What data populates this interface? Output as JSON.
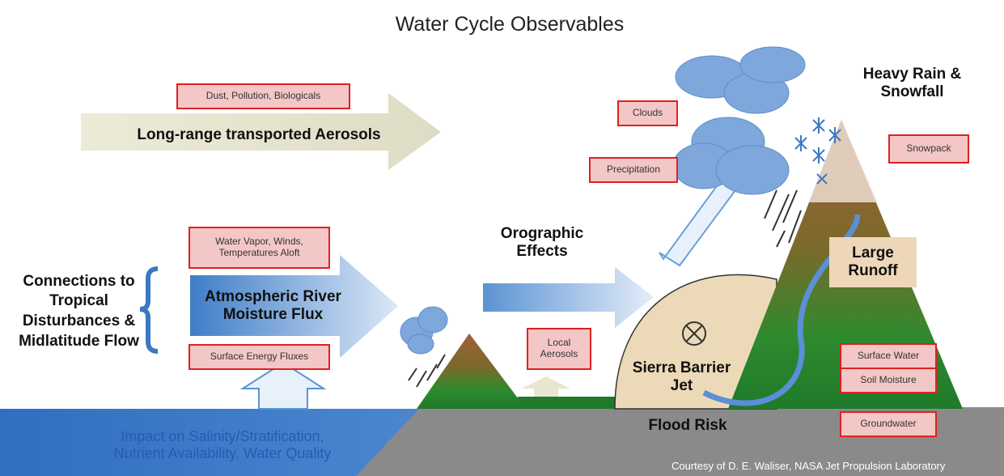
{
  "title": "Water Cycle Observables",
  "observables": [
    "Dust, Pollution, Biologicals",
    "Clouds",
    "Precipitation",
    "Snowpack",
    "Water Vapor, Winds, Temperatures Aloft",
    "Surface Energy Fluxes",
    "Local Aerosols",
    "Surface Water",
    "Soil Moisture",
    "Groundwater"
  ],
  "processes": [
    "Long-range transported Aerosols",
    "Heavy Rain & Snowfall",
    "Orographic Effects",
    "Connections to Tropical Disturbances & Midlatitude Flow",
    "Atmospheric River Moisture Flux",
    "Large Runoff",
    "Sierra Barrier Jet",
    "Flood Risk"
  ],
  "ocean_label": "Impact on Salinity/Stratification, Nutrient Availability, Water Quality",
  "credit": "Courtesy of D. E. Waliser, NASA Jet Propulsion Laboratory"
}
